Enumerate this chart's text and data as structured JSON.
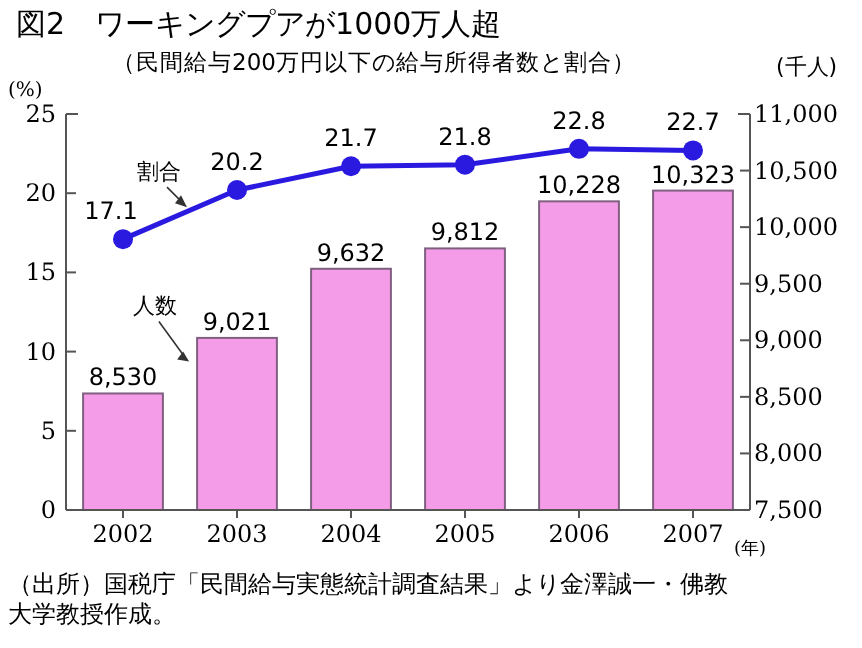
{
  "chart_data": {
    "type": "bar",
    "title": "図2　ワーキングプアが1000万人超",
    "subtitle": "（民間給与200万円以下の給与所得者数と割合）",
    "xlabel": "(年)",
    "ylabel": "(%)",
    "y2label": "(千人)",
    "categories": [
      "2002",
      "2003",
      "2004",
      "2005",
      "2006",
      "2007"
    ],
    "series": [
      {
        "name": "人数",
        "axis": "y2",
        "color": "#f59ce8",
        "values": [
          8530,
          9021,
          9632,
          9812,
          10228,
          10323
        ],
        "value_labels": [
          "8,530",
          "9,021",
          "9,632",
          "9,812",
          "10,228",
          "10,323"
        ]
      },
      {
        "name": "割合",
        "type": "line",
        "axis": "y",
        "color": "#2a1ae0",
        "values": [
          17.1,
          20.2,
          21.7,
          21.8,
          22.8,
          22.7
        ]
      }
    ],
    "ylim": [
      0,
      25
    ],
    "yticks": [
      0,
      5,
      10,
      15,
      20,
      25
    ],
    "y2lim": [
      7500,
      11000
    ],
    "y2ticks": [
      {
        "value": 7500,
        "label": "7,500"
      },
      {
        "value": 8000,
        "label": "8,000"
      },
      {
        "value": 8500,
        "label": "8,500"
      },
      {
        "value": 9000,
        "label": "9,000"
      },
      {
        "value": 9500,
        "label": "9,500"
      },
      {
        "value": 10000,
        "label": "10,000"
      },
      {
        "value": 10500,
        "label": "10,500"
      },
      {
        "value": 11000,
        "label": "11,000"
      }
    ],
    "marker": "circle",
    "data_labels": true,
    "grid": false,
    "annotations": [
      "（出所）国税庁「民間給与実態統計調査結果」より金澤誠一・佛教大学教授作成。"
    ]
  }
}
